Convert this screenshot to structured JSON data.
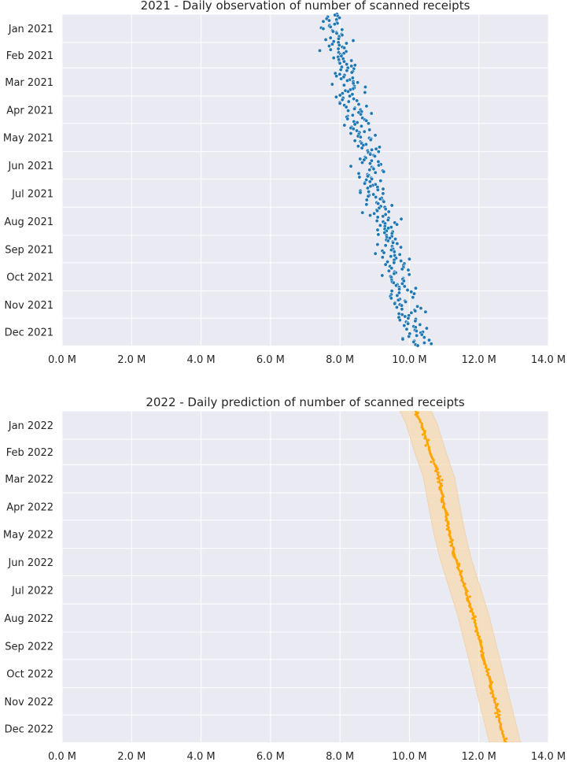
{
  "chart_data": [
    {
      "type": "scatter",
      "title": "2021 - Daily observation of number of scanned receipts",
      "xlabel": "",
      "ylabel": "",
      "x_ticks": [
        0,
        2,
        4,
        6,
        8,
        10,
        12,
        14
      ],
      "x_tick_labels": [
        "0.0 M",
        "2.0 M",
        "4.0 M",
        "6.0 M",
        "8.0 M",
        "10.0 M",
        "12.0 M",
        "14.0 M"
      ],
      "xlim": [
        0,
        14
      ],
      "x_unit": "M",
      "y_axis": "date",
      "ylim": [
        "2021-01-01",
        "2021-12-31"
      ],
      "y_inverted": true,
      "y_ticks": [
        "2021-01-01",
        "2021-02-01",
        "2021-03-01",
        "2021-04-01",
        "2021-05-01",
        "2021-06-01",
        "2021-07-01",
        "2021-08-01",
        "2021-09-01",
        "2021-10-01",
        "2021-11-01",
        "2021-12-01"
      ],
      "y_tick_labels": [
        "Jan 2021",
        "Feb 2021",
        "Mar 2021",
        "Apr 2021",
        "May 2021",
        "Jun 2021",
        "Jul 2021",
        "Aug 2021",
        "Sep 2021",
        "Oct 2021",
        "Nov 2021",
        "Dec 2021"
      ],
      "grid": true,
      "background": "#eaeaf2",
      "series": [
        {
          "color": "#1f77b4",
          "trend": {
            "x_start": 7.7,
            "x_end": 10.2
          },
          "spread": 0.35,
          "points": "daily"
        }
      ]
    },
    {
      "type": "line",
      "title": "2022 - Daily prediction of number of scanned receipts",
      "xlabel": "",
      "ylabel": "",
      "x_ticks": [
        0,
        2,
        4,
        6,
        8,
        10,
        12,
        14
      ],
      "x_tick_labels": [
        "0.0 M",
        "2.0 M",
        "4.0 M",
        "6.0 M",
        "8.0 M",
        "10.0 M",
        "12.0 M",
        "14.0 M"
      ],
      "xlim": [
        0,
        14
      ],
      "x_unit": "M",
      "y_axis": "date",
      "ylim": [
        "2022-01-01",
        "2022-12-31"
      ],
      "y_inverted": true,
      "y_ticks": [
        "2022-01-01",
        "2022-02-01",
        "2022-03-01",
        "2022-04-01",
        "2022-05-01",
        "2022-06-01",
        "2022-07-01",
        "2022-08-01",
        "2022-09-01",
        "2022-10-01",
        "2022-11-01",
        "2022-12-01"
      ],
      "y_tick_labels": [
        "Jan 2022",
        "Feb 2022",
        "Mar 2022",
        "Apr 2022",
        "May 2022",
        "Jun 2022",
        "Jul 2022",
        "Aug 2022",
        "Sep 2022",
        "Oct 2022",
        "Nov 2022",
        "Dec 2022"
      ],
      "grid": true,
      "background": "#eaeaf2",
      "series": [
        {
          "color": "#ffa500",
          "band_color": "#f5d9b0",
          "prediction": [
            {
              "x": "2021-12-26",
              "y": 10.1
            },
            {
              "x": "2022-01-15",
              "y": 10.35
            },
            {
              "x": "2022-02-15",
              "y": 10.6
            },
            {
              "x": "2022-03-15",
              "y": 10.85
            },
            {
              "x": "2022-04-15",
              "y": 11.0
            },
            {
              "x": "2022-05-15",
              "y": 11.15
            },
            {
              "x": "2022-06-15",
              "y": 11.35
            },
            {
              "x": "2022-07-15",
              "y": 11.6
            },
            {
              "x": "2022-08-15",
              "y": 11.85
            },
            {
              "x": "2022-09-15",
              "y": 12.05
            },
            {
              "x": "2022-10-15",
              "y": 12.25
            },
            {
              "x": "2022-11-15",
              "y": 12.45
            },
            {
              "x": "2022-12-31",
              "y": 12.75
            }
          ],
          "band_halfwidth": 0.45
        }
      ]
    }
  ]
}
